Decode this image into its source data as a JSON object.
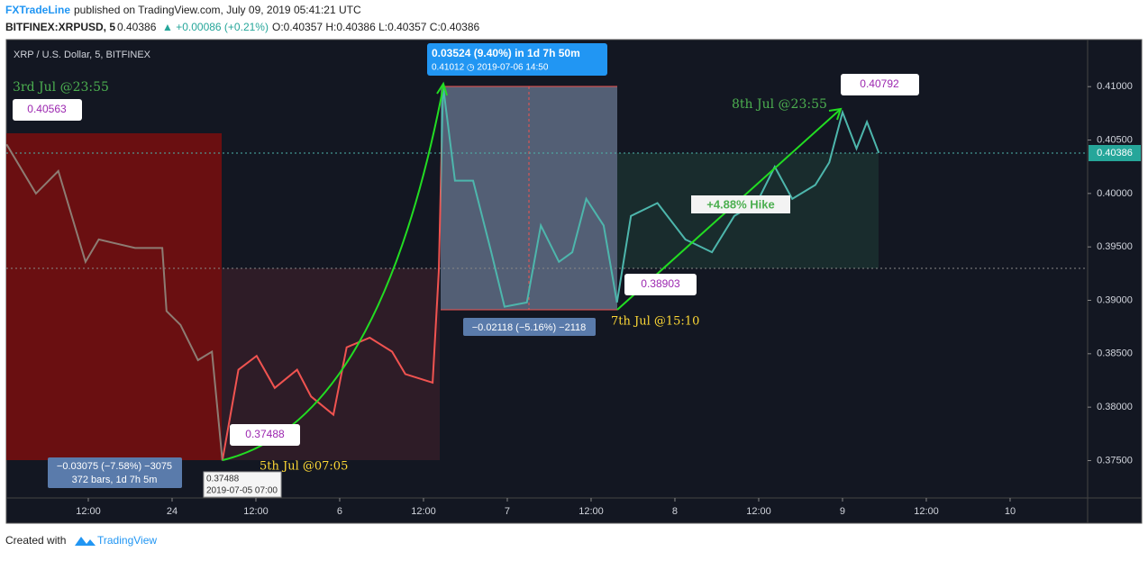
{
  "header": {
    "brand": "FXTradeLine",
    "published": "published on TradingView.com, July 09, 2019 05:41:21 UTC",
    "symbol": "BITFINEX:XRPUSD, 5",
    "last": "0.40386",
    "change": "▲ +0.00086 (+0.21%)",
    "ohlc": "O:0.40357 H:0.40386 L:0.40357 C:0.40386"
  },
  "chart_data": {
    "type": "line",
    "title": "XRP / U.S. Dollar, 5, BITFINEX",
    "x": [
      0.3,
      4.5,
      7.7,
      11.6,
      13.5,
      18.7,
      22.6,
      23.2,
      25.2,
      27.7,
      29.7,
      31.2,
      33.5,
      36.1,
      38.7,
      41.9,
      43.9,
      47.1,
      49.0,
      52.3,
      55.5,
      57.4,
      61.3,
      62.2,
      62.8,
      64.5,
      67.1,
      69.7,
      71.6,
      74.8,
      76.8,
      79.4,
      81.3,
      83.3,
      85.8,
      87.7,
      89.7,
      93.5,
      97.5,
      101.3,
      104.5,
      107.7,
      110.3,
      112.8,
      116.1,
      118.1,
      120.0,
      122.0,
      123.5,
      125.2
    ],
    "values": [
      0.4046,
      0.4,
      0.4021,
      0.3936,
      0.3957,
      0.3949,
      0.3949,
      0.389,
      0.3877,
      0.3844,
      0.3852,
      0.375,
      0.3835,
      0.3848,
      0.3818,
      0.3835,
      0.381,
      0.3793,
      0.3856,
      0.3865,
      0.3852,
      0.3831,
      0.3823,
      0.3928,
      0.4101,
      0.4012,
      0.4012,
      0.3945,
      0.3894,
      0.3898,
      0.397,
      0.3936,
      0.3945,
      0.3995,
      0.397,
      0.3898,
      0.3979,
      0.3991,
      0.3957,
      0.3945,
      0.3979,
      0.3991,
      0.4025,
      0.3995,
      0.4008,
      0.4029,
      0.4076,
      0.4042,
      0.4067,
      0.4038
    ],
    "xlim": [
      0.26,
      155.1
    ],
    "xticks": [
      {
        "value": 12,
        "label": "12:00"
      },
      24,
      {
        "value": 36,
        "label": "12:00"
      },
      {
        "value": 48,
        "label": "6"
      },
      {
        "value": 60,
        "label": "12:00"
      },
      {
        "value": 72,
        "label": "7"
      },
      {
        "value": 84,
        "label": "12:00"
      },
      {
        "value": 96,
        "label": "8"
      },
      {
        "value": 108,
        "label": "12:00"
      },
      {
        "value": 120,
        "label": "9"
      },
      {
        "value": 132,
        "label": "12:00"
      },
      {
        "value": 144,
        "label": "10"
      }
    ],
    "ylim": [
      0.3715,
      0.4144
    ],
    "yticks": [
      {
        "value": 0.375,
        "label": "0.37500"
      },
      {
        "value": 0.38,
        "label": "0.38000"
      },
      {
        "value": 0.385,
        "label": "0.38500"
      },
      {
        "value": 0.39,
        "label": "0.39000"
      },
      {
        "value": 0.395,
        "label": "0.39500"
      },
      {
        "value": 0.4,
        "label": "0.40000"
      },
      {
        "value": 0.405,
        "label": "0.40500"
      },
      {
        "value": 0.41,
        "label": "0.41000"
      }
    ],
    "last_price_label": "0.40386",
    "annotations": [
      "3rd Jul @23:55",
      "0.40563",
      "0.03524 (9.40%) in 1d 7h 50m",
      "0.41012  ◷ 2019-07-06  14:50",
      "0.40792",
      "8th Jul @23:55",
      "+4.88% Hike",
      "0.38903",
      "7th Jul @15:10",
      "−0.02118 (−5.16%) −2118",
      "0.37488",
      "5th Jul @07:05",
      "−0.03075 (−7.58%) −3075",
      "372 bars, 1d 7h 5m",
      "0.37488",
      "2019-07-05 07:00"
    ]
  },
  "footer": {
    "created": "Created with",
    "brand": "TradingView"
  }
}
